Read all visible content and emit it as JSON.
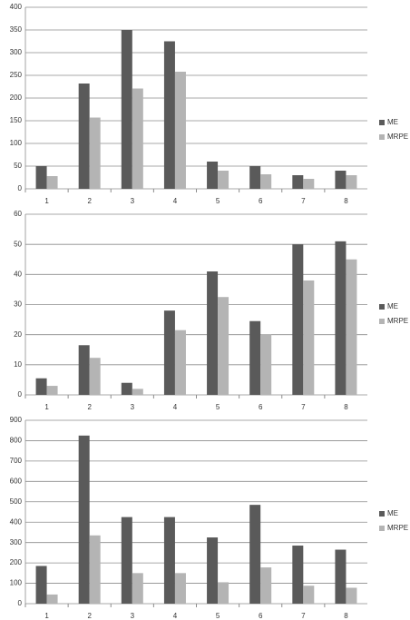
{
  "chart_data": [
    {
      "type": "bar",
      "categories": [
        "1",
        "2",
        "3",
        "4",
        "5",
        "6",
        "7",
        "8"
      ],
      "series": [
        {
          "name": "ME",
          "color": "#5a5a5a",
          "values": [
            50,
            232,
            350,
            325,
            60,
            50,
            30,
            40
          ]
        },
        {
          "name": "MRPE",
          "color": "#b4b4b4",
          "values": [
            28,
            157,
            221,
            258,
            40,
            32,
            22,
            30
          ]
        }
      ],
      "ylim": [
        0,
        400
      ],
      "yticks": [
        0,
        50,
        100,
        150,
        200,
        250,
        300,
        350,
        400
      ],
      "grid": true,
      "legend": "right"
    },
    {
      "type": "bar",
      "categories": [
        "1",
        "2",
        "3",
        "4",
        "5",
        "6",
        "7",
        "8"
      ],
      "series": [
        {
          "name": "ME",
          "color": "#5a5a5a",
          "values": [
            5.5,
            16.5,
            4,
            28,
            41,
            24.5,
            50,
            51
          ]
        },
        {
          "name": "MRPE",
          "color": "#b4b4b4",
          "values": [
            3,
            12.3,
            2,
            21.5,
            32.5,
            20,
            38,
            45
          ]
        }
      ],
      "ylim": [
        0,
        60
      ],
      "yticks": [
        0,
        10,
        20,
        30,
        40,
        50,
        60
      ],
      "grid": true,
      "legend": "right"
    },
    {
      "type": "bar",
      "categories": [
        "1",
        "2",
        "3",
        "4",
        "5",
        "6",
        "7",
        "8"
      ],
      "series": [
        {
          "name": "ME",
          "color": "#5a5a5a",
          "values": [
            185,
            825,
            425,
            425,
            325,
            485,
            285,
            265
          ]
        },
        {
          "name": "MRPE",
          "color": "#b4b4b4",
          "values": [
            45,
            335,
            150,
            150,
            105,
            178,
            88,
            78
          ]
        }
      ],
      "ylim": [
        0,
        900
      ],
      "yticks": [
        0,
        100,
        200,
        300,
        400,
        500,
        600,
        700,
        800,
        900
      ],
      "grid": true,
      "legend": "right"
    }
  ]
}
